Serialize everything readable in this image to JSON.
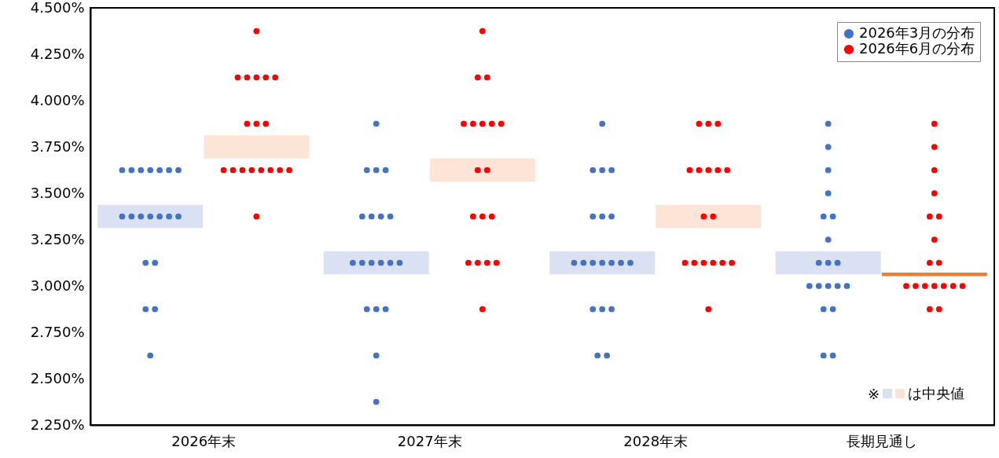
{
  "chart_data": {
    "type": "scatter",
    "categories": [
      "2026年末",
      "2027年末",
      "2028年末",
      "長期見通し"
    ],
    "ylim": [
      2.25,
      4.5
    ],
    "yticks": [
      {
        "value": 2.25,
        "label": "2.250%"
      },
      {
        "value": 2.5,
        "label": "2.500%"
      },
      {
        "value": 2.75,
        "label": "2.750%"
      },
      {
        "value": 3,
        "label": "3.000%"
      },
      {
        "value": 3.25,
        "label": "3.250%"
      },
      {
        "value": 3.5,
        "label": "3.500%"
      },
      {
        "value": 3.75,
        "label": "3.750%"
      },
      {
        "value": 4,
        "label": "4.000%"
      },
      {
        "value": 4.25,
        "label": "4.250%"
      },
      {
        "value": 4.5,
        "label": "4.500%"
      }
    ],
    "grid": false,
    "legend": "top right",
    "marker": "circle",
    "annotations": [
      "※",
      "は中央値"
    ],
    "series": [
      {
        "type": "bar",
        "colors": [
          "#dae1f2",
          "#dae1f2",
          "#dae1f2",
          "#dae1f2"
        ],
        "x": [
          "2026年末",
          "2027年末",
          "2028年末",
          "長期見通し"
        ],
        "base": [
          3.3125,
          3.0625,
          3.0625,
          3.0625
        ],
        "values": [
          0.125,
          0.125,
          0.125,
          0.125
        ]
      },
      {
        "type": "bar",
        "colors": [
          "#fce4d6",
          "#fce4d6",
          "#fce4d6",
          "#ed7d31"
        ],
        "x": [
          "2026年末",
          "2027年末",
          "2028年末",
          "長期見通し"
        ],
        "base": [
          3.6875,
          3.5625,
          3.3125,
          3.0525
        ],
        "values": [
          0.125,
          0.125,
          0.125,
          0.02
        ]
      },
      {
        "name": "2026年3月の分布",
        "color": "#4472c4",
        "x": [
          "2026年末",
          "2026年末",
          "2026年末",
          "2026年末",
          "2026年末",
          "2026年末",
          "2026年末",
          "2026年末",
          "2026年末",
          "2026年末",
          "2026年末",
          "2026年末",
          "2026年末",
          "2026年末",
          "2026年末",
          "2026年末",
          "2026年末",
          "2026年末",
          "2026年末",
          "2027年末",
          "2027年末",
          "2027年末",
          "2027年末",
          "2027年末",
          "2027年末",
          "2027年末",
          "2027年末",
          "2027年末",
          "2027年末",
          "2027年末",
          "2027年末",
          "2027年末",
          "2027年末",
          "2027年末",
          "2027年末",
          "2027年末",
          "2027年末",
          "2027年末",
          "2028年末",
          "2028年末",
          "2028年末",
          "2028年末",
          "2028年末",
          "2028年末",
          "2028年末",
          "2028年末",
          "2028年末",
          "2028年末",
          "2028年末",
          "2028年末",
          "2028年末",
          "2028年末",
          "2028年末",
          "2028年末",
          "2028年末",
          "2028年末",
          "2028年末",
          "長期見通し",
          "長期見通し",
          "長期見通し",
          "長期見通し",
          "長期見通し",
          "長期見通し",
          "長期見通し",
          "長期見通し",
          "長期見通し",
          "長期見通し",
          "長期見通し",
          "長期見通し",
          "長期見通し",
          "長期見通し",
          "長期見通し",
          "長期見通し",
          "長期見通し",
          "長期見通し",
          "長期見通し"
        ],
        "values": [
          3.625,
          3.625,
          3.625,
          3.625,
          3.625,
          3.625,
          3.625,
          3.375,
          3.375,
          3.375,
          3.375,
          3.375,
          3.375,
          3.375,
          3.125,
          3.125,
          2.875,
          2.875,
          2.625,
          3.875,
          3.625,
          3.625,
          3.625,
          3.375,
          3.375,
          3.375,
          3.375,
          3.125,
          3.125,
          3.125,
          3.125,
          3.125,
          3.125,
          2.875,
          2.875,
          2.875,
          2.625,
          2.375,
          3.875,
          3.625,
          3.625,
          3.625,
          3.375,
          3.375,
          3.375,
          3.125,
          3.125,
          3.125,
          3.125,
          3.125,
          3.125,
          3.125,
          2.875,
          2.875,
          2.875,
          2.625,
          2.625,
          3.875,
          3.75,
          3.625,
          3.5,
          3.375,
          3.375,
          3.25,
          3.125,
          3.125,
          3.125,
          3,
          3,
          3,
          3,
          3,
          2.875,
          2.875,
          2.625,
          2.625
        ]
      },
      {
        "name": "2026年6月の分布",
        "color": "#ff0000",
        "x": [
          "2026年末",
          "2026年末",
          "2026年末",
          "2026年末",
          "2026年末",
          "2026年末",
          "2026年末",
          "2026年末",
          "2026年末",
          "2026年末",
          "2026年末",
          "2026年末",
          "2026年末",
          "2026年末",
          "2026年末",
          "2026年末",
          "2026年末",
          "2026年末",
          "2027年末",
          "2027年末",
          "2027年末",
          "2027年末",
          "2027年末",
          "2027年末",
          "2027年末",
          "2027年末",
          "2027年末",
          "2027年末",
          "2027年末",
          "2027年末",
          "2027年末",
          "2027年末",
          "2027年末",
          "2027年末",
          "2027年末",
          "2027年末",
          "2028年末",
          "2028年末",
          "2028年末",
          "2028年末",
          "2028年末",
          "2028年末",
          "2028年末",
          "2028年末",
          "2028年末",
          "2028年末",
          "2028年末",
          "2028年末",
          "2028年末",
          "2028年末",
          "2028年末",
          "2028年末",
          "2028年末",
          "長期見通し",
          "長期見通し",
          "長期見通し",
          "長期見通し",
          "長期見通し",
          "長期見通し",
          "長期見通し",
          "長期見通し",
          "長期見通し",
          "長期見通し",
          "長期見通し",
          "長期見通し",
          "長期見通し",
          "長期見通し",
          "長期見通し",
          "長期見通し",
          "長期見通し",
          "長期見通し"
        ],
        "values": [
          4.375,
          4.125,
          4.125,
          4.125,
          4.125,
          4.125,
          3.875,
          3.875,
          3.875,
          3.625,
          3.625,
          3.625,
          3.625,
          3.625,
          3.625,
          3.625,
          3.625,
          3.375,
          4.375,
          4.125,
          4.125,
          3.875,
          3.875,
          3.875,
          3.875,
          3.875,
          3.625,
          3.625,
          3.375,
          3.375,
          3.375,
          3.125,
          3.125,
          3.125,
          3.125,
          2.875,
          3.875,
          3.875,
          3.875,
          3.625,
          3.625,
          3.625,
          3.625,
          3.625,
          3.375,
          3.375,
          3.125,
          3.125,
          3.125,
          3.125,
          3.125,
          3.125,
          2.875,
          3.875,
          3.75,
          3.625,
          3.5,
          3.375,
          3.375,
          3.25,
          3.125,
          3.125,
          3,
          3,
          3,
          3,
          3,
          3,
          3,
          2.875,
          2.875
        ]
      }
    ]
  }
}
